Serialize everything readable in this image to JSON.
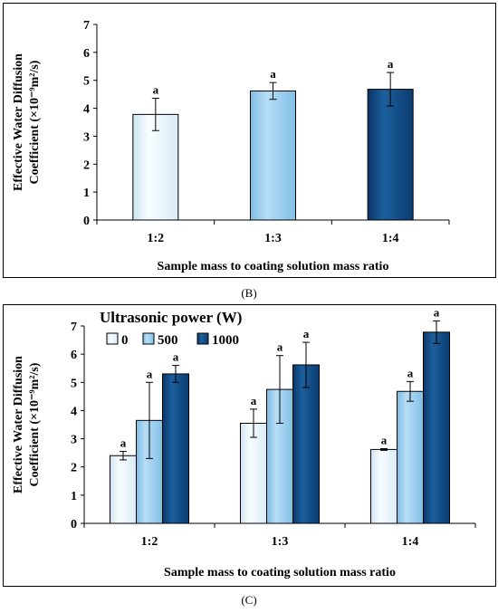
{
  "chart_data": [
    {
      "type": "bar",
      "panel_label": "(B)",
      "categories": [
        "1:2",
        "1:3",
        "1:4"
      ],
      "values": [
        3.78,
        4.62,
        4.68
      ],
      "errors": [
        0.58,
        0.3,
        0.6
      ],
      "significance": [
        "a",
        "a",
        "a"
      ],
      "colors": [
        "#eef7fd",
        "#9fd2f1",
        "#0f4b86"
      ],
      "xlabel": "Sample mass to coating solution mass ratio",
      "ylabel_line1": "Effective Water Diffusion",
      "ylabel_line2": "Coefficient (×10⁻⁹m²/s)",
      "ylim": [
        0,
        7
      ],
      "yticks": [
        "0",
        "1",
        "2",
        "3",
        "4",
        "5",
        "6",
        "7"
      ],
      "grid": false
    },
    {
      "type": "bar",
      "panel_label": "(C)",
      "categories": [
        "1:2",
        "1:3",
        "1:4"
      ],
      "legend_title": "Ultrasonic power (W)",
      "legend_position": "top-left",
      "series": [
        {
          "name": "0",
          "color": "#eef7fd",
          "values": [
            2.4,
            3.55,
            2.62
          ],
          "errors": [
            0.15,
            0.5,
            0.03
          ],
          "significance": [
            "a",
            "a",
            "a"
          ]
        },
        {
          "name": "500",
          "color": "#9fd2f1",
          "values": [
            3.65,
            4.75,
            4.68
          ],
          "errors": [
            1.35,
            1.2,
            0.35
          ],
          "significance": [
            "a",
            "a",
            "a"
          ]
        },
        {
          "name": "1000",
          "color": "#0f4b86",
          "values": [
            5.3,
            5.62,
            6.78
          ],
          "errors": [
            0.3,
            0.8,
            0.4
          ],
          "significance": [
            "a",
            "a",
            "a"
          ]
        }
      ],
      "xlabel": "Sample mass to coating solution mass ratio",
      "ylabel_line1": "Effective Water Diffusion",
      "ylabel_line2": "Coefficient (×10⁻⁹m²/s)",
      "ylim": [
        0,
        7
      ],
      "yticks": [
        "0",
        "1",
        "2",
        "3",
        "4",
        "5",
        "6",
        "7"
      ],
      "grid": false
    }
  ]
}
